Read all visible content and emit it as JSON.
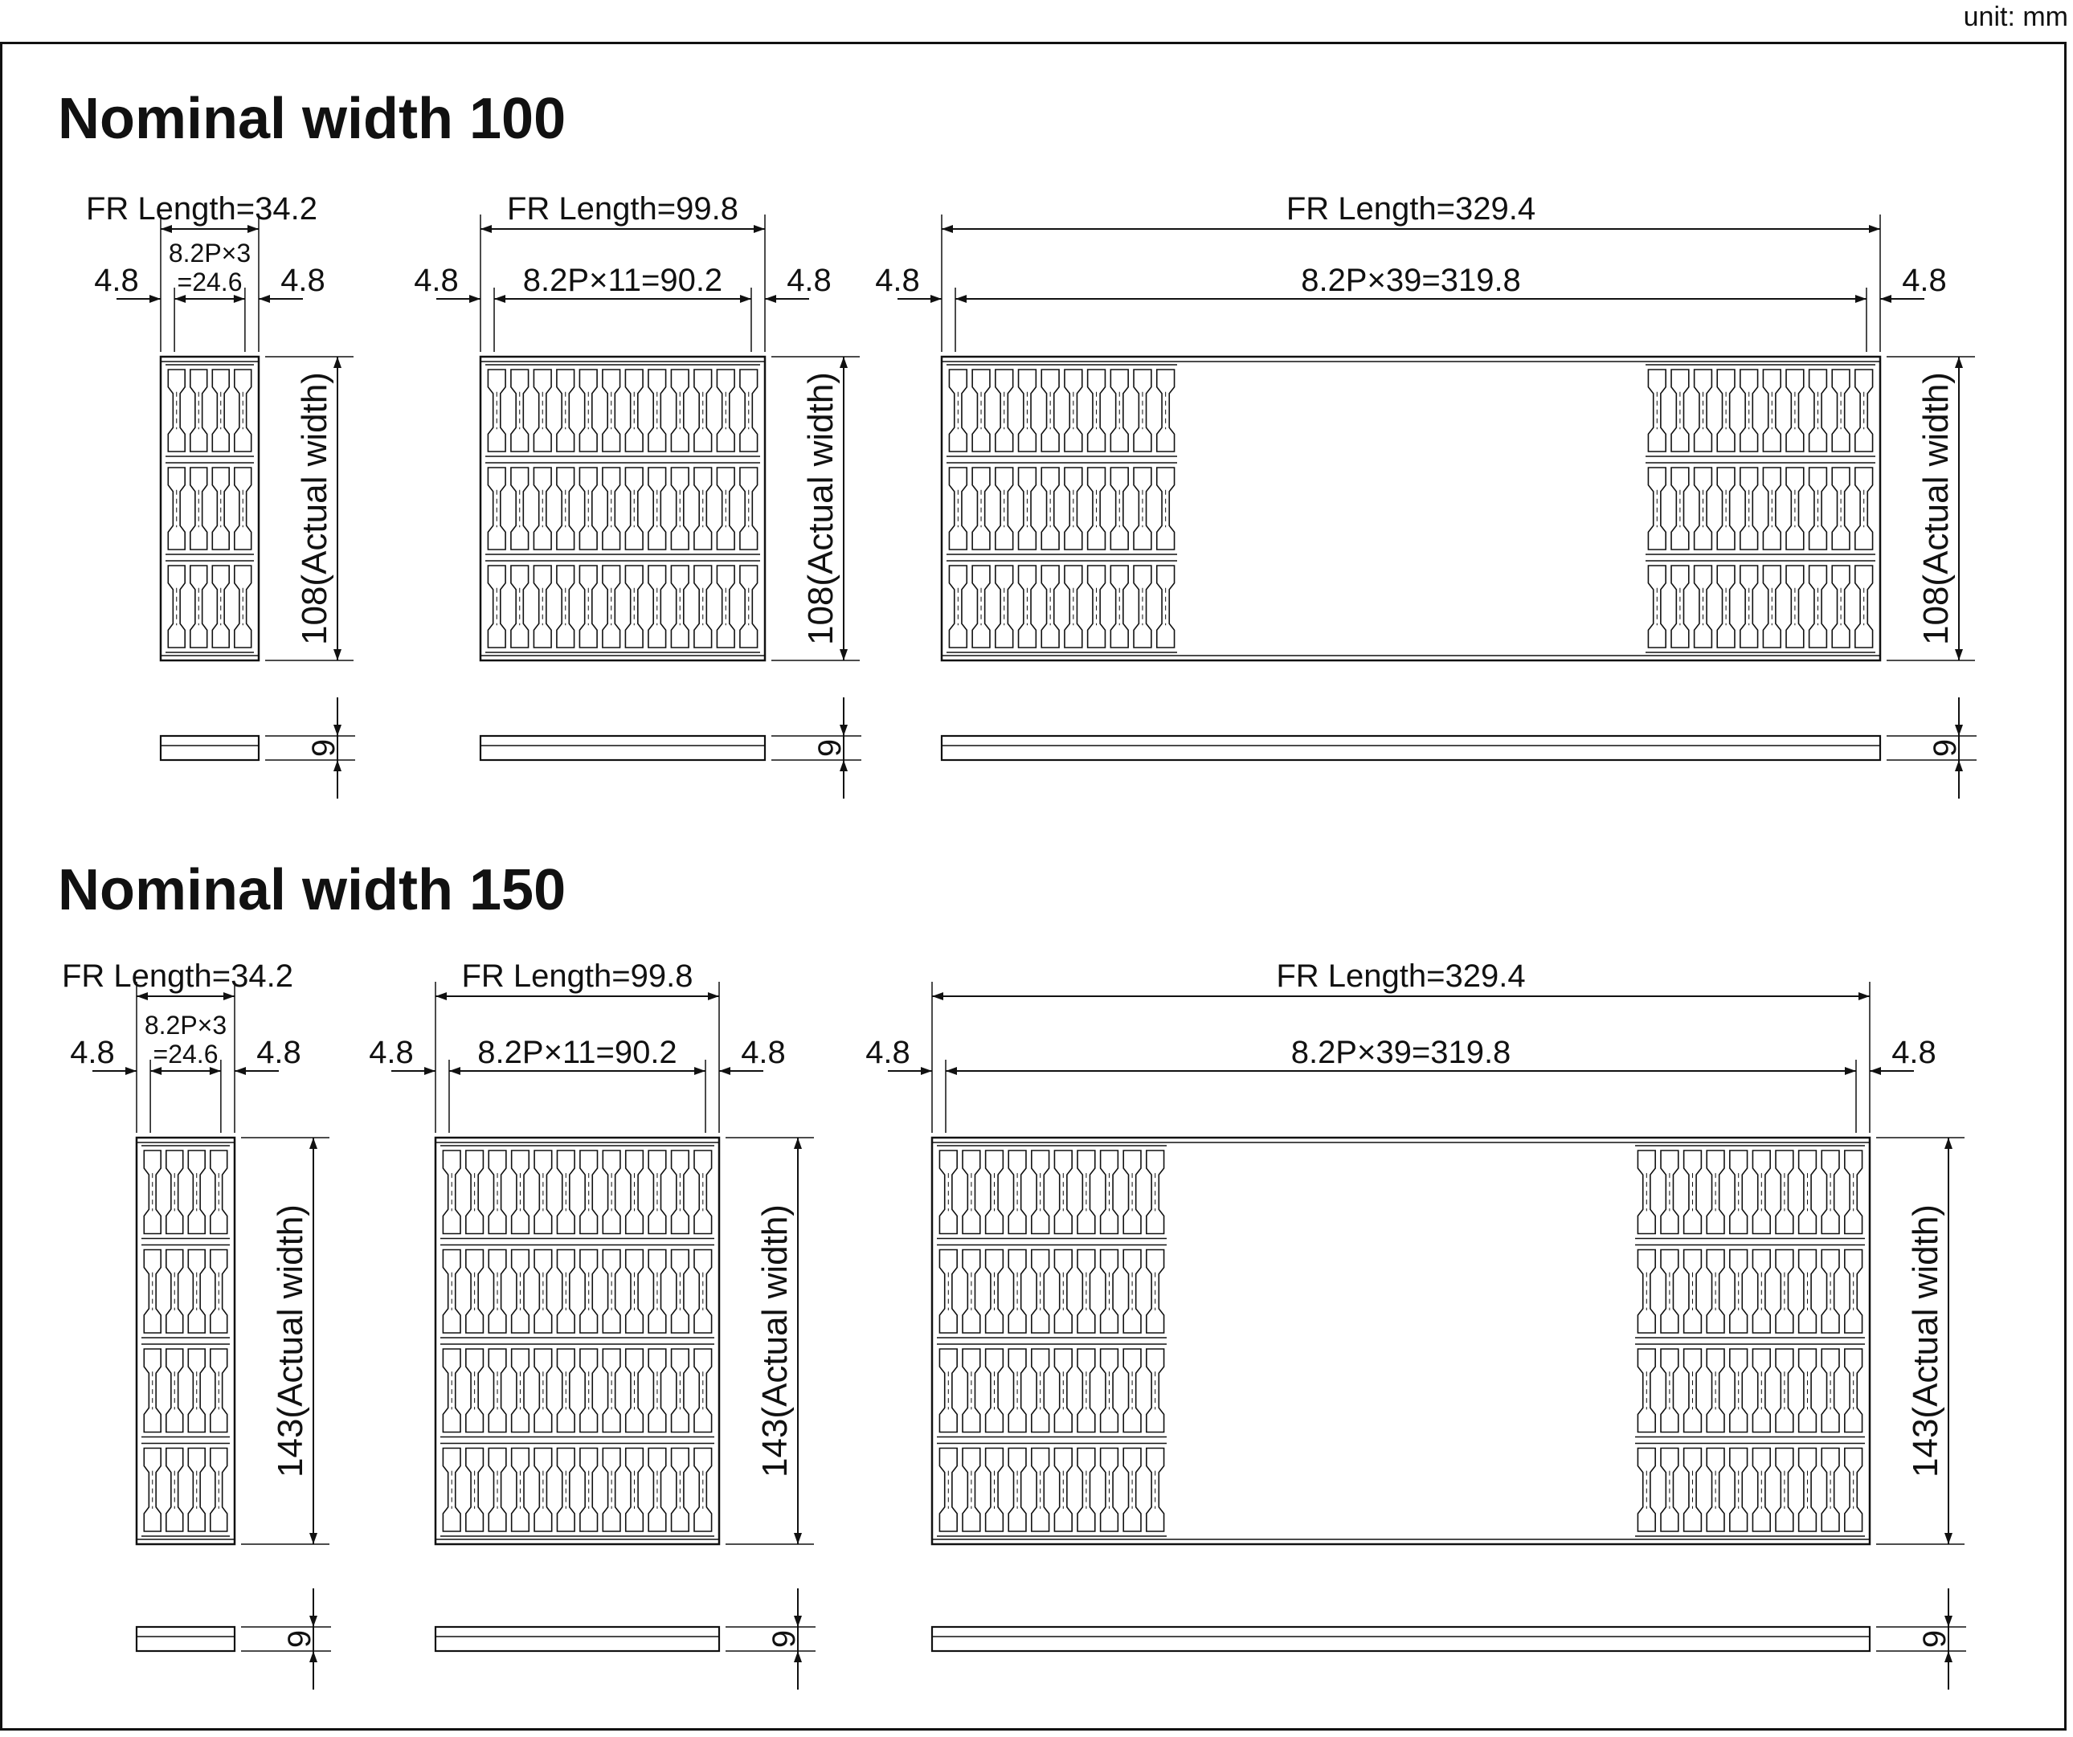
{
  "unit_label": "unit: mm",
  "sections": [
    {
      "title": "Nominal width 100",
      "actual_width_label": "108(Actual width)",
      "thickness_label": "9",
      "rows": 3,
      "drawings": [
        {
          "fr_length": "FR Length=34.2",
          "pitch": [
            "8.2P×3",
            "=24.6"
          ],
          "left_margin": "4.8",
          "right_margin": "4.8",
          "links": 4
        },
        {
          "fr_length": "FR Length=99.8",
          "pitch": [
            "8.2P×11=90.2"
          ],
          "left_margin": "4.8",
          "right_margin": "4.8",
          "links": 12
        },
        {
          "fr_length": "FR Length=329.4",
          "pitch": [
            "8.2P×39=319.8"
          ],
          "left_margin": "4.8",
          "right_margin": "4.8",
          "links": 40
        }
      ]
    },
    {
      "title": "Nominal width 150",
      "actual_width_label": "143(Actual width)",
      "thickness_label": "9",
      "rows": 4,
      "drawings": [
        {
          "fr_length": "FR Length=34.2",
          "pitch": [
            "8.2P×3",
            "=24.6"
          ],
          "left_margin": "4.8",
          "right_margin": "4.8",
          "links": 4
        },
        {
          "fr_length": "FR Length=99.8",
          "pitch": [
            "8.2P×11=90.2"
          ],
          "left_margin": "4.8",
          "right_margin": "4.8",
          "links": 12
        },
        {
          "fr_length": "FR Length=329.4",
          "pitch": [
            "8.2P×39=319.8"
          ],
          "left_margin": "4.8",
          "right_margin": "4.8",
          "links": 40
        }
      ]
    }
  ]
}
